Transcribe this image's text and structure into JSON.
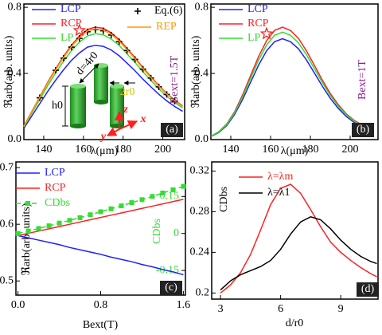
{
  "chart_data": [
    {
      "type": "line",
      "xlabel": "λ(μm)",
      "ylabel": "ℜarb(arb. units)",
      "x": [
        130,
        134,
        138,
        142,
        146,
        150,
        154,
        158,
        162,
        166,
        170,
        174,
        178,
        182,
        186,
        190,
        194,
        198,
        202,
        206,
        210
      ],
      "xlim": [
        130,
        211
      ],
      "xticks": [
        140,
        160,
        180,
        200
      ],
      "ylim": [
        0,
        0.82
      ],
      "yticks": [
        {
          "value": 0,
          "label": "0.0"
        },
        0.4,
        0.8
      ],
      "series": [
        {
          "name": "LCP",
          "color": "#2020ff",
          "values": [
            0.068,
            0.143,
            0.217,
            0.291,
            0.359,
            0.422,
            0.479,
            0.524,
            0.559,
            0.57,
            0.564,
            0.542,
            0.507,
            0.462,
            0.416,
            0.365,
            0.319,
            0.274,
            0.234,
            0.2,
            0.171
          ]
        },
        {
          "name": "RCP",
          "color": "#ff2020",
          "values": [
            0.082,
            0.17,
            0.258,
            0.347,
            0.428,
            0.503,
            0.571,
            0.626,
            0.666,
            0.68,
            0.673,
            0.646,
            0.605,
            0.551,
            0.496,
            0.435,
            0.381,
            0.326,
            0.279,
            0.238,
            0.204
          ]
        },
        {
          "name": "LP",
          "color": "#33dd33",
          "values": [
            0.077,
            0.16,
            0.243,
            0.326,
            0.403,
            0.474,
            0.538,
            0.589,
            0.627,
            0.64,
            0.634,
            0.608,
            0.57,
            0.518,
            0.467,
            0.41,
            0.358,
            0.307,
            0.262,
            0.224,
            0.192
          ]
        },
        {
          "name": "Eq.(6)",
          "color": "#000000",
          "marker": "plus",
          "line": false,
          "x": [
            138,
            146,
            150,
            154,
            158,
            162,
            166,
            170,
            174,
            178,
            182,
            186,
            190,
            194,
            198,
            202,
            206
          ],
          "values": [
            0.253,
            0.419,
            0.492,
            0.559,
            0.612,
            0.652,
            0.665,
            0.658,
            0.632,
            0.592,
            0.539,
            0.485,
            0.426,
            0.372,
            0.319,
            0.273,
            0.233
          ]
        },
        {
          "name": "REP",
          "color": "#ff9900",
          "values": [
            0.08,
            0.168,
            0.255,
            0.342,
            0.422,
            0.496,
            0.563,
            0.616,
            0.657,
            0.67,
            0.663,
            0.637,
            0.596,
            0.543,
            0.489,
            0.429,
            0.375,
            0.322,
            0.275,
            0.235,
            0.201
          ]
        }
      ],
      "highlight": {
        "x": 158,
        "y": 0.66,
        "color": "#ff2020"
      },
      "annotations": [
        "Bext=1.5T",
        "(a)",
        "d=4r0",
        "h0",
        "2r0",
        "z",
        "x",
        "y"
      ]
    },
    {
      "type": "line",
      "xlabel": "λ(μm)",
      "ylabel": "ℜarb(arb. units)",
      "x": [
        130,
        134,
        138,
        142,
        146,
        150,
        154,
        158,
        162,
        166,
        170,
        174,
        178,
        182,
        186,
        190,
        194,
        198,
        202,
        206,
        210
      ],
      "xlim": [
        130,
        214
      ],
      "xticks": [
        140,
        160,
        180,
        200
      ],
      "ylim": [
        0,
        0.82
      ],
      "yticks": [
        {
          "value": 0,
          "label": "0.0"
        },
        0.4,
        0.8
      ],
      "series": [
        {
          "name": "LCP",
          "color": "#2020ff",
          "values": [
            0.018,
            0.043,
            0.085,
            0.153,
            0.244,
            0.348,
            0.451,
            0.537,
            0.592,
            0.61,
            0.592,
            0.549,
            0.482,
            0.403,
            0.323,
            0.25,
            0.189,
            0.14,
            0.104,
            0.079,
            0.061
          ]
        },
        {
          "name": "RCP",
          "color": "#ff2020",
          "values": [
            0.02,
            0.048,
            0.095,
            0.17,
            0.272,
            0.388,
            0.503,
            0.598,
            0.66,
            0.68,
            0.66,
            0.612,
            0.537,
            0.449,
            0.36,
            0.279,
            0.211,
            0.156,
            0.116,
            0.088,
            0.068
          ]
        },
        {
          "name": "LP",
          "color": "#33dd33",
          "values": [
            0.02,
            0.046,
            0.091,
            0.163,
            0.26,
            0.371,
            0.481,
            0.572,
            0.631,
            0.65,
            0.631,
            0.585,
            0.514,
            0.429,
            0.345,
            0.267,
            0.202,
            0.15,
            0.111,
            0.085,
            0.065
          ]
        }
      ],
      "highlight": {
        "x": 158,
        "y": 0.64,
        "color": "#ff2020"
      },
      "annotations": [
        "Bext=1T",
        "(b)"
      ]
    },
    {
      "type": "line",
      "xlabel": "Bext(T)",
      "ylabel": "ℜarb(arb. units)",
      "y2label": "CDbs",
      "x": [
        0,
        0.1,
        0.2,
        0.3,
        0.4,
        0.5,
        0.6,
        0.7,
        0.8,
        0.9,
        1.0,
        1.1,
        1.2,
        1.3,
        1.4,
        1.5,
        1.6
      ],
      "xlim": [
        -0.02,
        1.62
      ],
      "xticks": [
        {
          "value": 0,
          "label": "0.0"
        },
        0.8,
        1.6
      ],
      "ylim": [
        0.475,
        0.71
      ],
      "yticks": [
        0.5,
        0.6,
        0.7
      ],
      "y2lim": [
        -0.25,
        0.29
      ],
      "y2ticks": [
        -0.15,
        0,
        0.15
      ],
      "y2color": "#33dd33",
      "series": [
        {
          "name": "LCP",
          "color": "#2020ff",
          "values": [
            0.58,
            0.576,
            0.572,
            0.568,
            0.564,
            0.559,
            0.555,
            0.551,
            0.547,
            0.542,
            0.538,
            0.534,
            0.529,
            0.525,
            0.52,
            0.516,
            0.511
          ]
        },
        {
          "name": "RCP",
          "color": "#ff2020",
          "values": [
            0.58,
            0.584,
            0.588,
            0.592,
            0.596,
            0.6,
            0.604,
            0.608,
            0.612,
            0.616,
            0.62,
            0.624,
            0.628,
            0.632,
            0.636,
            0.64,
            0.644
          ]
        },
        {
          "name": "CDbs",
          "color": "#33dd33",
          "axis": "y2",
          "marker": "square",
          "dash": true,
          "values": [
            0,
            0.01,
            0.02,
            0.031,
            0.042,
            0.053,
            0.064,
            0.076,
            0.088,
            0.1,
            0.112,
            0.125,
            0.137,
            0.15,
            0.164,
            0.177,
            0.191
          ]
        }
      ],
      "annotations": [
        "(c)"
      ]
    },
    {
      "type": "line",
      "xlabel": "d/r0",
      "ylabel": "CDbs",
      "x": [
        3,
        3.5,
        4,
        4.5,
        5,
        5.5,
        6,
        6.5,
        7,
        7.5,
        8,
        8.5,
        9,
        9.5,
        10,
        10.5,
        10.8
      ],
      "xlim": [
        2.56,
        10.86
      ],
      "xticks": [
        3,
        6,
        9
      ],
      "ylim": [
        0.194,
        0.329
      ],
      "yticks": [
        0.2,
        0.24,
        0.28,
        0.32
      ],
      "series": [
        {
          "name": "λ=λm",
          "color": "#ff2020",
          "values": [
            0.2,
            0.208,
            0.22,
            0.238,
            0.262,
            0.287,
            0.303,
            0.307,
            0.298,
            0.282,
            0.265,
            0.25,
            0.24,
            0.232,
            0.225,
            0.219,
            0.216
          ]
        },
        {
          "name": "λ=λ1",
          "color": "#000000",
          "values": [
            0.203,
            0.212,
            0.218,
            0.222,
            0.226,
            0.232,
            0.243,
            0.258,
            0.27,
            0.275,
            0.272,
            0.263,
            0.252,
            0.243,
            0.236,
            0.231,
            0.229
          ]
        }
      ],
      "annotations": [
        "(d)"
      ]
    }
  ]
}
